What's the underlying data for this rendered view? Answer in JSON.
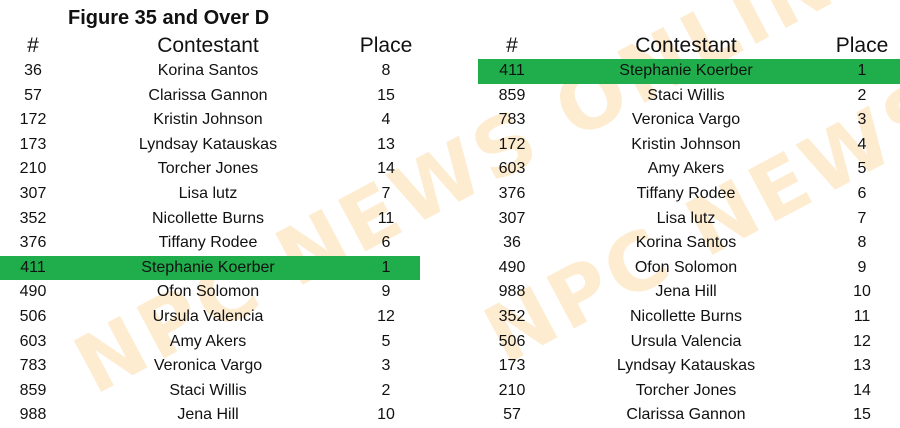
{
  "watermark": "NPC NEWS ONLINE",
  "title": "Figure 35 and Over D",
  "highlight_color": "#1fae4b",
  "headers": {
    "num": "#",
    "name": "Contestant",
    "place": "Place"
  },
  "left": [
    {
      "num": "36",
      "name": "Korina Santos",
      "place": "8"
    },
    {
      "num": "57",
      "name": "Clarissa Gannon",
      "place": "15"
    },
    {
      "num": "172",
      "name": "Kristin Johnson",
      "place": "4"
    },
    {
      "num": "173",
      "name": "Lyndsay Katauskas",
      "place": "13"
    },
    {
      "num": "210",
      "name": "Torcher Jones",
      "place": "14"
    },
    {
      "num": "307",
      "name": "Lisa lutz",
      "place": "7"
    },
    {
      "num": "352",
      "name": "Nicollette Burns",
      "place": "11"
    },
    {
      "num": "376",
      "name": "Tiffany Rodee",
      "place": "6"
    },
    {
      "num": "411",
      "name": "Stephanie Koerber",
      "place": "1",
      "highlight": true
    },
    {
      "num": "490",
      "name": "Ofon Solomon",
      "place": "9"
    },
    {
      "num": "506",
      "name": "Ursula Valencia",
      "place": "12"
    },
    {
      "num": "603",
      "name": "Amy Akers",
      "place": "5"
    },
    {
      "num": "783",
      "name": "Veronica Vargo",
      "place": "3"
    },
    {
      "num": "859",
      "name": "Staci Willis",
      "place": "2"
    },
    {
      "num": "988",
      "name": "Jena Hill",
      "place": "10"
    }
  ],
  "right": [
    {
      "num": "411",
      "name": "Stephanie Koerber",
      "place": "1",
      "highlight": true
    },
    {
      "num": "859",
      "name": "Staci Willis",
      "place": "2"
    },
    {
      "num": "783",
      "name": "Veronica Vargo",
      "place": "3"
    },
    {
      "num": "172",
      "name": "Kristin Johnson",
      "place": "4"
    },
    {
      "num": "603",
      "name": "Amy Akers",
      "place": "5"
    },
    {
      "num": "376",
      "name": "Tiffany Rodee",
      "place": "6"
    },
    {
      "num": "307",
      "name": "Lisa lutz",
      "place": "7"
    },
    {
      "num": "36",
      "name": "Korina Santos",
      "place": "8"
    },
    {
      "num": "490",
      "name": "Ofon Solomon",
      "place": "9"
    },
    {
      "num": "988",
      "name": "Jena Hill",
      "place": "10"
    },
    {
      "num": "352",
      "name": "Nicollette Burns",
      "place": "11"
    },
    {
      "num": "506",
      "name": "Ursula Valencia",
      "place": "12"
    },
    {
      "num": "173",
      "name": "Lyndsay Katauskas",
      "place": "13"
    },
    {
      "num": "210",
      "name": "Torcher Jones",
      "place": "14"
    },
    {
      "num": "57",
      "name": "Clarissa Gannon",
      "place": "15"
    }
  ]
}
